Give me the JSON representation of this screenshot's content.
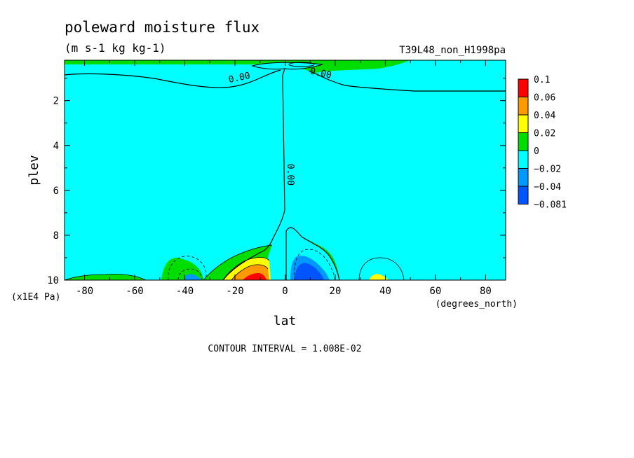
{
  "chart_data": {
    "type": "contour",
    "title": "poleward moisture flux",
    "subtitle": "(m s-1 kg kg-1)",
    "run_label": "T39L48_non_H1998pa",
    "xlabel": "lat",
    "x_units": "(degrees_north)",
    "ylabel": "plev",
    "y_units": "(x1E4 Pa)",
    "xlim": [
      -88,
      88
    ],
    "ylim": [
      10,
      0.2
    ],
    "y_inverted": true,
    "x_ticks": [
      "-80",
      "-60",
      "-40",
      "-20",
      "0",
      "20",
      "40",
      "60",
      "80"
    ],
    "x_tick_values": [
      -80,
      -60,
      -40,
      -20,
      0,
      20,
      40,
      60,
      80
    ],
    "y_ticks": [
      "2",
      "4",
      "6",
      "8",
      "10"
    ],
    "y_tick_values": [
      2,
      4,
      6,
      8,
      10
    ],
    "contour_labels": [
      {
        "text": "0.00",
        "lat": -18,
        "plev": 1.1
      },
      {
        "text": "0.00",
        "lat": 14,
        "plev": 0.9
      },
      {
        "text": "0.00",
        "lat": 1,
        "plev": 5.3
      }
    ],
    "contour_interval_text": "CONTOUR INTERVAL = 1.008E-02",
    "colorbar": {
      "labels": [
        "0.1",
        "0.06",
        "0.04",
        "0.02",
        "0",
        "−0.02",
        "−0.04",
        "−0.081"
      ],
      "colors": [
        "#ff0000",
        "#ff9900",
        "#ffff00",
        "#00dd00",
        "#00ffff",
        "#0099ff",
        "#0055ff"
      ]
    },
    "fill_colors": {
      "pos_1": "#00dd00",
      "pos_2": "#ffff00",
      "pos_3": "#ff9900",
      "pos_4": "#ff0000",
      "neg_1": "#00ffff",
      "neg_2": "#0099ff",
      "neg_3": "#0055ff"
    }
  }
}
